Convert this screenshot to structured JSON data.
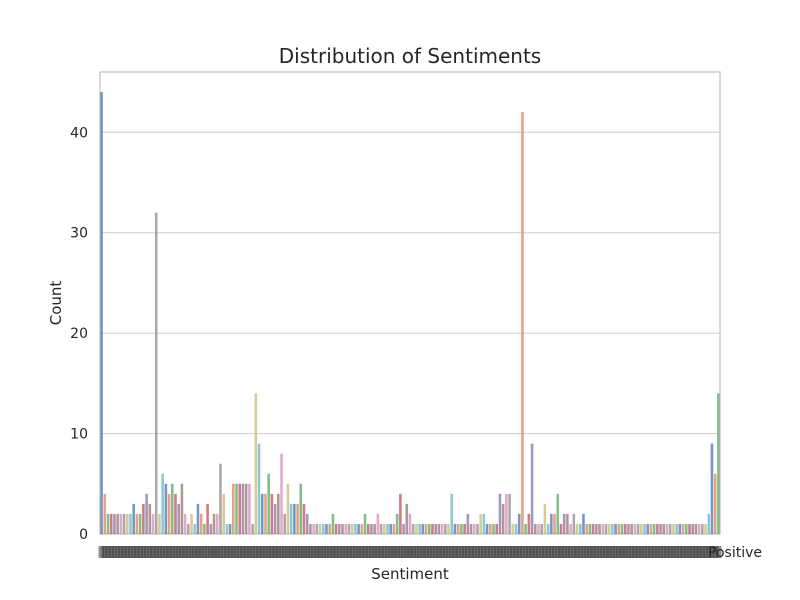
{
  "chart_data": {
    "type": "bar",
    "title": "Distribution of Sentiments",
    "xlabel": "Sentiment",
    "ylabel": "Count",
    "ylim": [
      0,
      46
    ],
    "yticks": [
      0,
      10,
      20,
      30,
      40
    ],
    "grid": "horizontal",
    "visible_xtick_text": "Positive",
    "palette": [
      "#4c72b0",
      "#dd8452",
      "#55a868",
      "#c44e52",
      "#8172b3",
      "#937860",
      "#da8bc3",
      "#8c8c8c",
      "#ccb974",
      "#64b5cd"
    ],
    "values": [
      44,
      4,
      2,
      2,
      2,
      2,
      2,
      2,
      2,
      2,
      3,
      2,
      2,
      3,
      4,
      3,
      2,
      32,
      2,
      6,
      5,
      4,
      5,
      4,
      3,
      5,
      2,
      1,
      2,
      1,
      3,
      2,
      1,
      3,
      1,
      2,
      2,
      7,
      4,
      1,
      1,
      5,
      5,
      5,
      5,
      5,
      5,
      1,
      14,
      9,
      4,
      4,
      6,
      4,
      3,
      4,
      8,
      2,
      5,
      3,
      3,
      3,
      5,
      3,
      2,
      1,
      1,
      1,
      1,
      1,
      1,
      1,
      2,
      1,
      1,
      1,
      1,
      1,
      1,
      1,
      1,
      1,
      2,
      1,
      1,
      1,
      2,
      1,
      1,
      1,
      1,
      1,
      2,
      4,
      1,
      3,
      2,
      1,
      1,
      1,
      1,
      1,
      1,
      1,
      1,
      1,
      1,
      1,
      1,
      4,
      1,
      1,
      1,
      1,
      2,
      1,
      1,
      1,
      2,
      2,
      1,
      1,
      1,
      1,
      4,
      3,
      4,
      4,
      1,
      1,
      2,
      42,
      1,
      2,
      9,
      1,
      1,
      1,
      3,
      1,
      2,
      2,
      4,
      1,
      2,
      2,
      1,
      2,
      1,
      1,
      2,
      1,
      1,
      1,
      1,
      1,
      1,
      1,
      1,
      1,
      1,
      1,
      1,
      1,
      1,
      1,
      1,
      1,
      1,
      1,
      1,
      1,
      1,
      1,
      1,
      1,
      1,
      1,
      1,
      1,
      1,
      1,
      1,
      1,
      1,
      1,
      1,
      1,
      1,
      2,
      9,
      6,
      14
    ]
  }
}
